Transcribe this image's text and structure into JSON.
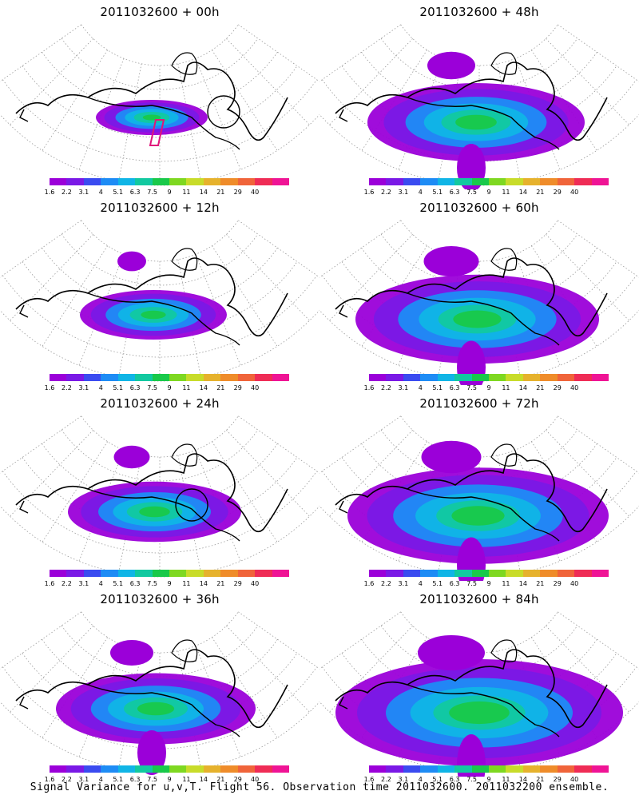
{
  "panels": [
    {
      "title": "2011032600 + 00h",
      "lead": "00h",
      "extent": 0.0,
      "circle": true,
      "box": true
    },
    {
      "title": "2011032600 + 48h",
      "lead": "48h",
      "extent": 0.6,
      "circle": false,
      "box": false
    },
    {
      "title": "2011032600 + 12h",
      "lead": "12h",
      "extent": 0.2,
      "circle": false,
      "box": false
    },
    {
      "title": "2011032600 + 60h",
      "lead": "60h",
      "extent": 0.75,
      "circle": false,
      "box": false
    },
    {
      "title": "2011032600 + 24h",
      "lead": "24h",
      "extent": 0.35,
      "circle": true,
      "box": false
    },
    {
      "title": "2011032600 + 72h",
      "lead": "72h",
      "extent": 0.85,
      "circle": false,
      "box": false
    },
    {
      "title": "2011032600 + 36h",
      "lead": "36h",
      "extent": 0.5,
      "circle": false,
      "box": false
    },
    {
      "title": "2011032600 + 84h",
      "lead": "84h",
      "extent": 1.0,
      "circle": false,
      "box": false
    }
  ],
  "colorbar": {
    "colors": [
      "#9b00d9",
      "#7a19e6",
      "#3a4bf0",
      "#1e8cf5",
      "#10b5e6",
      "#12c9a0",
      "#19c94a",
      "#7ed821",
      "#c8dc2a",
      "#e6b22d",
      "#ef8c2a",
      "#f0643a",
      "#ef2c56",
      "#ef1495"
    ],
    "labels": [
      "1.6",
      "2.2",
      "3.1",
      "4",
      "5.1",
      "6.3",
      "7.5",
      "9",
      "11",
      "14",
      "21",
      "29",
      "40"
    ]
  },
  "footer": "Signal Variance for u,v,T. Flight 56. Observation time 2011032600. 2011032200 ensemble."
}
